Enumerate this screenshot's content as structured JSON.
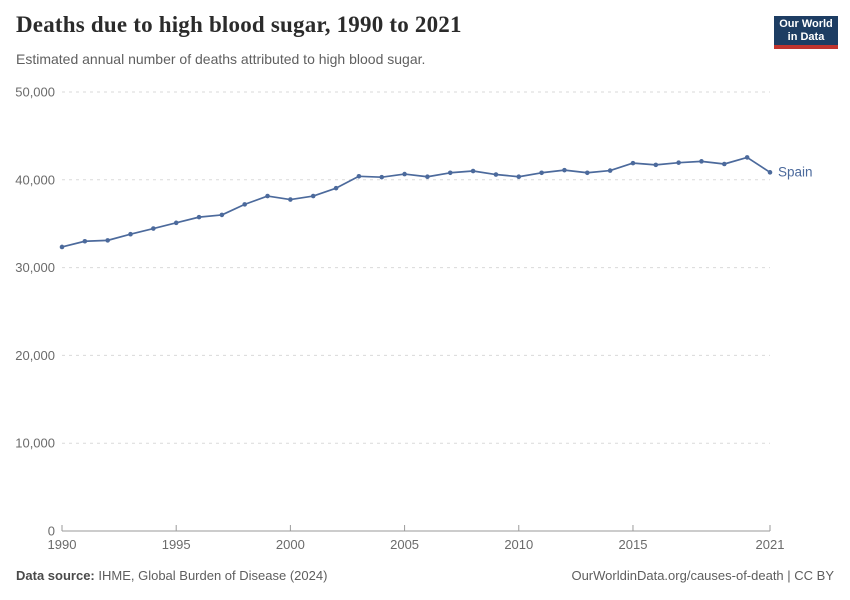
{
  "header": {
    "title": "Deaths due to high blood sugar, 1990 to 2021",
    "subtitle": "Estimated annual number of deaths attributed to high blood sugar.",
    "logo": {
      "line1": "Our World",
      "line2": "in Data",
      "bg_color": "#1d3d63",
      "accent_color": "#c0342e"
    }
  },
  "chart_data": {
    "type": "line",
    "title": "Deaths due to high blood sugar, 1990 to 2021",
    "subtitle": "Estimated annual number of deaths attributed to high blood sugar.",
    "xlabel": "",
    "ylabel": "",
    "xlim": [
      1990,
      2021
    ],
    "ylim": [
      0,
      50000
    ],
    "grid": "horizontal-dashed",
    "legend_position": "end-of-line-label",
    "grid_color": "#dadada",
    "axis_color": "#9a9a9a",
    "tick_label_color": "#6b6b6b",
    "x_ticks": [
      {
        "value": 1990,
        "label": "1990"
      },
      {
        "value": 1995,
        "label": "1995"
      },
      {
        "value": 2000,
        "label": "2000"
      },
      {
        "value": 2005,
        "label": "2005"
      },
      {
        "value": 2010,
        "label": "2010"
      },
      {
        "value": 2015,
        "label": "2015"
      },
      {
        "value": 2021,
        "label": "2021"
      }
    ],
    "y_ticks": [
      {
        "value": 0,
        "label": "0"
      },
      {
        "value": 10000,
        "label": "10,000"
      },
      {
        "value": 20000,
        "label": "20,000"
      },
      {
        "value": 30000,
        "label": "30,000"
      },
      {
        "value": 40000,
        "label": "40,000"
      },
      {
        "value": 50000,
        "label": "50,000"
      }
    ],
    "series": [
      {
        "name": "Spain",
        "color": "#4c6a9c",
        "x": [
          1990,
          1991,
          1992,
          1993,
          1994,
          1995,
          1996,
          1997,
          1998,
          1999,
          2000,
          2001,
          2002,
          2003,
          2004,
          2005,
          2006,
          2007,
          2008,
          2009,
          2010,
          2011,
          2012,
          2013,
          2014,
          2015,
          2016,
          2017,
          2018,
          2019,
          2020,
          2021
        ],
        "values": [
          32350,
          33000,
          33100,
          33800,
          34450,
          35100,
          35750,
          36000,
          37200,
          38150,
          37750,
          38150,
          39050,
          40400,
          40300,
          40650,
          40350,
          40800,
          41000,
          40600,
          40350,
          40800,
          41100,
          40800,
          41050,
          41900,
          41700,
          41950,
          42100,
          41800,
          42550,
          40850
        ]
      }
    ]
  },
  "footer": {
    "source_label": "Data source:",
    "source_text": " IHME, Global Burden of Disease (2024)",
    "credit": "OurWorldinData.org/causes-of-death | CC BY"
  }
}
